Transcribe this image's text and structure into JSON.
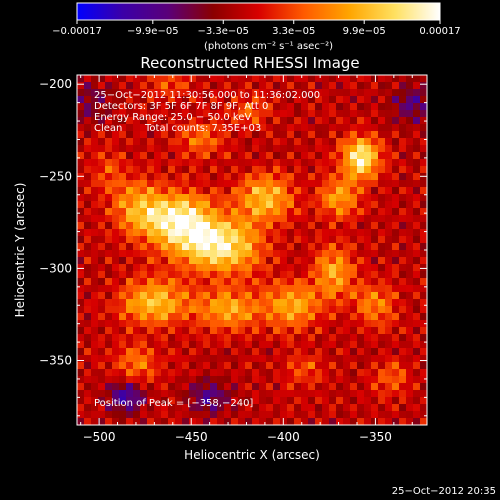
{
  "chart_data": {
    "type": "heatmap",
    "title": "Reconstructed RHESSI Image",
    "xlabel": "Heliocentric X (arcsec)",
    "ylabel": "Heliocentric Y (arcsec)",
    "xlim": [
      -512,
      -322
    ],
    "ylim": [
      -385,
      -195
    ],
    "x_ticks": [
      -500,
      -450,
      -400,
      -350
    ],
    "y_ticks": [
      -200,
      -250,
      -300,
      -350
    ],
    "x_tick_labels": [
      "−500",
      "−450",
      "−400",
      "−350"
    ],
    "y_tick_labels": [
      "−200",
      "−250",
      "−300",
      "−350"
    ],
    "colorbar": {
      "range": [
        -0.00017,
        0.00017
      ],
      "tick_values": [
        -0.00017,
        -9.9e-05,
        -3.3e-05,
        3.3e-05,
        9.9e-05,
        0.00017
      ],
      "tick_labels": [
        "−0.00017",
        "−9.9e−05",
        "−3.3e−05",
        "3.3e−05",
        "9.9e−05",
        "0.00017"
      ],
      "units": "(photons cm⁻² s⁻¹ asec⁻²)",
      "colors": [
        "#0000ff",
        "#3b00a8",
        "#5a007a",
        "#8b0000",
        "#d80000",
        "#ff5a00",
        "#ffa500",
        "#ffe060",
        "#ffffff"
      ]
    },
    "annotations": [
      "25−Oct−2012 11:30:56.000 to 11:36:02.000",
      "Detectors: 3F 5F 6F 7F 8F 9F, Att 0",
      "Energy Range: 25.0 − 50.0 keV",
      "Clean",
      "Total counts: 7.35E+03"
    ],
    "peak_label": "Position of Peak = [−358,−240]",
    "peak": [
      -358,
      -240
    ],
    "blobs": [
      {
        "x": -455,
        "y": -275,
        "v": 0.00017,
        "sx": 12,
        "sy": 11
      },
      {
        "x": -433,
        "y": -288,
        "v": 0.00016,
        "sx": 14,
        "sy": 10
      },
      {
        "x": -478,
        "y": -268,
        "v": 0.00011,
        "sx": 10,
        "sy": 10
      },
      {
        "x": -410,
        "y": -262,
        "v": 0.00012,
        "sx": 11,
        "sy": 9
      },
      {
        "x": -470,
        "y": -318,
        "v": 0.00012,
        "sx": 13,
        "sy": 9
      },
      {
        "x": -430,
        "y": -322,
        "v": 0.0001,
        "sx": 12,
        "sy": 8
      },
      {
        "x": -395,
        "y": -320,
        "v": 0.0001,
        "sx": 11,
        "sy": 9
      },
      {
        "x": -358,
        "y": -240,
        "v": 0.00017,
        "sx": 7,
        "sy": 8
      },
      {
        "x": -370,
        "y": -262,
        "v": 9e-05,
        "sx": 8,
        "sy": 8
      },
      {
        "x": -372,
        "y": -302,
        "v": 0.0001,
        "sx": 8,
        "sy": 10
      },
      {
        "x": -350,
        "y": -320,
        "v": 8e-05,
        "sx": 8,
        "sy": 8
      },
      {
        "x": -342,
        "y": -360,
        "v": 6e-05,
        "sx": 7,
        "sy": 7
      },
      {
        "x": -480,
        "y": -352,
        "v": 7e-05,
        "sx": 9,
        "sy": 8
      },
      {
        "x": -445,
        "y": -230,
        "v": 7e-05,
        "sx": 9,
        "sy": 7
      },
      {
        "x": -418,
        "y": -215,
        "v": 5e-05,
        "sx": 8,
        "sy": 7
      },
      {
        "x": -462,
        "y": -200,
        "v": 5e-05,
        "sx": 8,
        "sy": 6
      },
      {
        "x": -388,
        "y": -355,
        "v": 5e-05,
        "sx": 8,
        "sy": 7
      },
      {
        "x": -495,
        "y": -248,
        "v": 5e-05,
        "sx": 7,
        "sy": 9
      },
      {
        "x": -485,
        "y": -370,
        "v": -0.00011,
        "sx": 7,
        "sy": 6
      },
      {
        "x": -440,
        "y": -370,
        "v": -8e-05,
        "sx": 8,
        "sy": 6
      },
      {
        "x": -330,
        "y": -210,
        "v": -7e-05,
        "sx": 8,
        "sy": 8
      },
      {
        "x": -505,
        "y": -210,
        "v": -5e-05,
        "sx": 8,
        "sy": 8
      }
    ]
  },
  "footer": {
    "timestamp": "25−Oct−2012 20:35"
  }
}
